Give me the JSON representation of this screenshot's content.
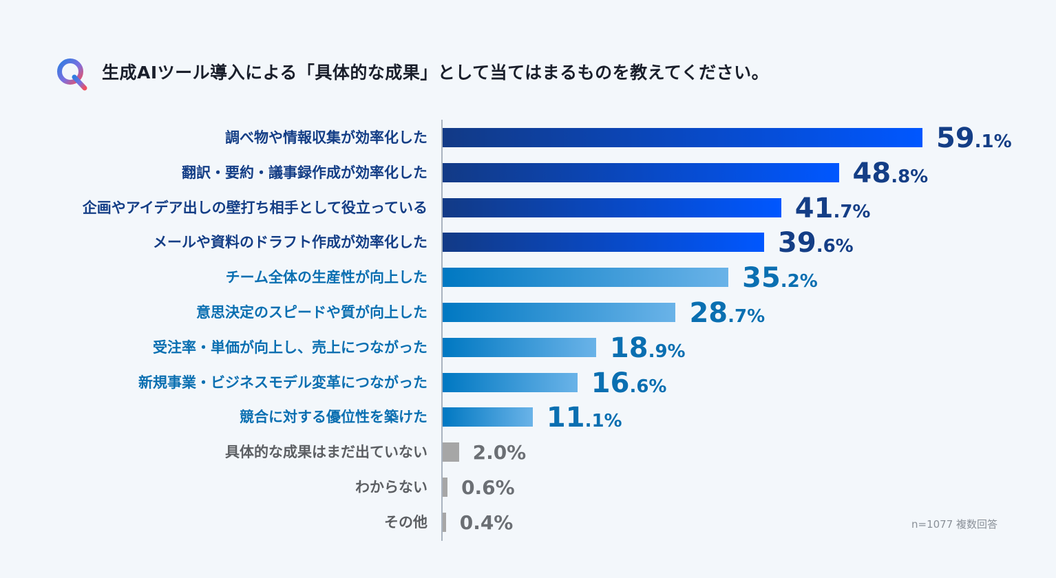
{
  "question": "生成AIツール導入による「具体的な成果」として当てはまるものを教えてください。",
  "note": "n=1077 複数回答",
  "colors": {
    "dark_start": "#123a86",
    "dark_end": "#0057ff",
    "mid_start": "#0078c2",
    "mid_end": "#6ab3e8",
    "gray": "#a6a6a6",
    "label_dark": "#143e86",
    "label_mid": "#0a6fb1",
    "label_gray": "#5c5f63"
  },
  "chart_data": {
    "type": "bar",
    "orientation": "horizontal",
    "unit": "%",
    "categories": [
      "調べ物や情報収集が効率化した",
      "翻訳・要約・議事録作成が効率化した",
      "企画やアイデア出しの壁打ち相手として役立っている",
      "メールや資料のドラフト作成が効率化した",
      "チーム全体の生産性が向上した",
      "意思決定のスピードや質が向上した",
      "受注率・単価が向上し、売上につながった",
      "新規事業・ビジネスモデル変革につながった",
      "競合に対する優位性を築けた",
      "具体的な成果はまだ出ていない",
      "わからない",
      "その他"
    ],
    "values": [
      59.1,
      48.8,
      41.7,
      39.6,
      35.2,
      28.7,
      18.9,
      16.6,
      11.1,
      2.0,
      0.6,
      0.4
    ],
    "value_labels_int": [
      "59",
      "48",
      "41",
      "39",
      "35",
      "28",
      "18",
      "16",
      "11",
      "2",
      "0",
      "0"
    ],
    "value_labels_dec": [
      ".1%",
      ".8%",
      ".7%",
      ".6%",
      ".2%",
      ".7%",
      ".9%",
      ".6%",
      ".1%",
      ".0%",
      ".6%",
      ".4%"
    ],
    "groups": [
      "dark",
      "dark",
      "dark",
      "dark",
      "mid",
      "mid",
      "mid",
      "mid",
      "mid",
      "gray",
      "gray",
      "gray"
    ]
  }
}
